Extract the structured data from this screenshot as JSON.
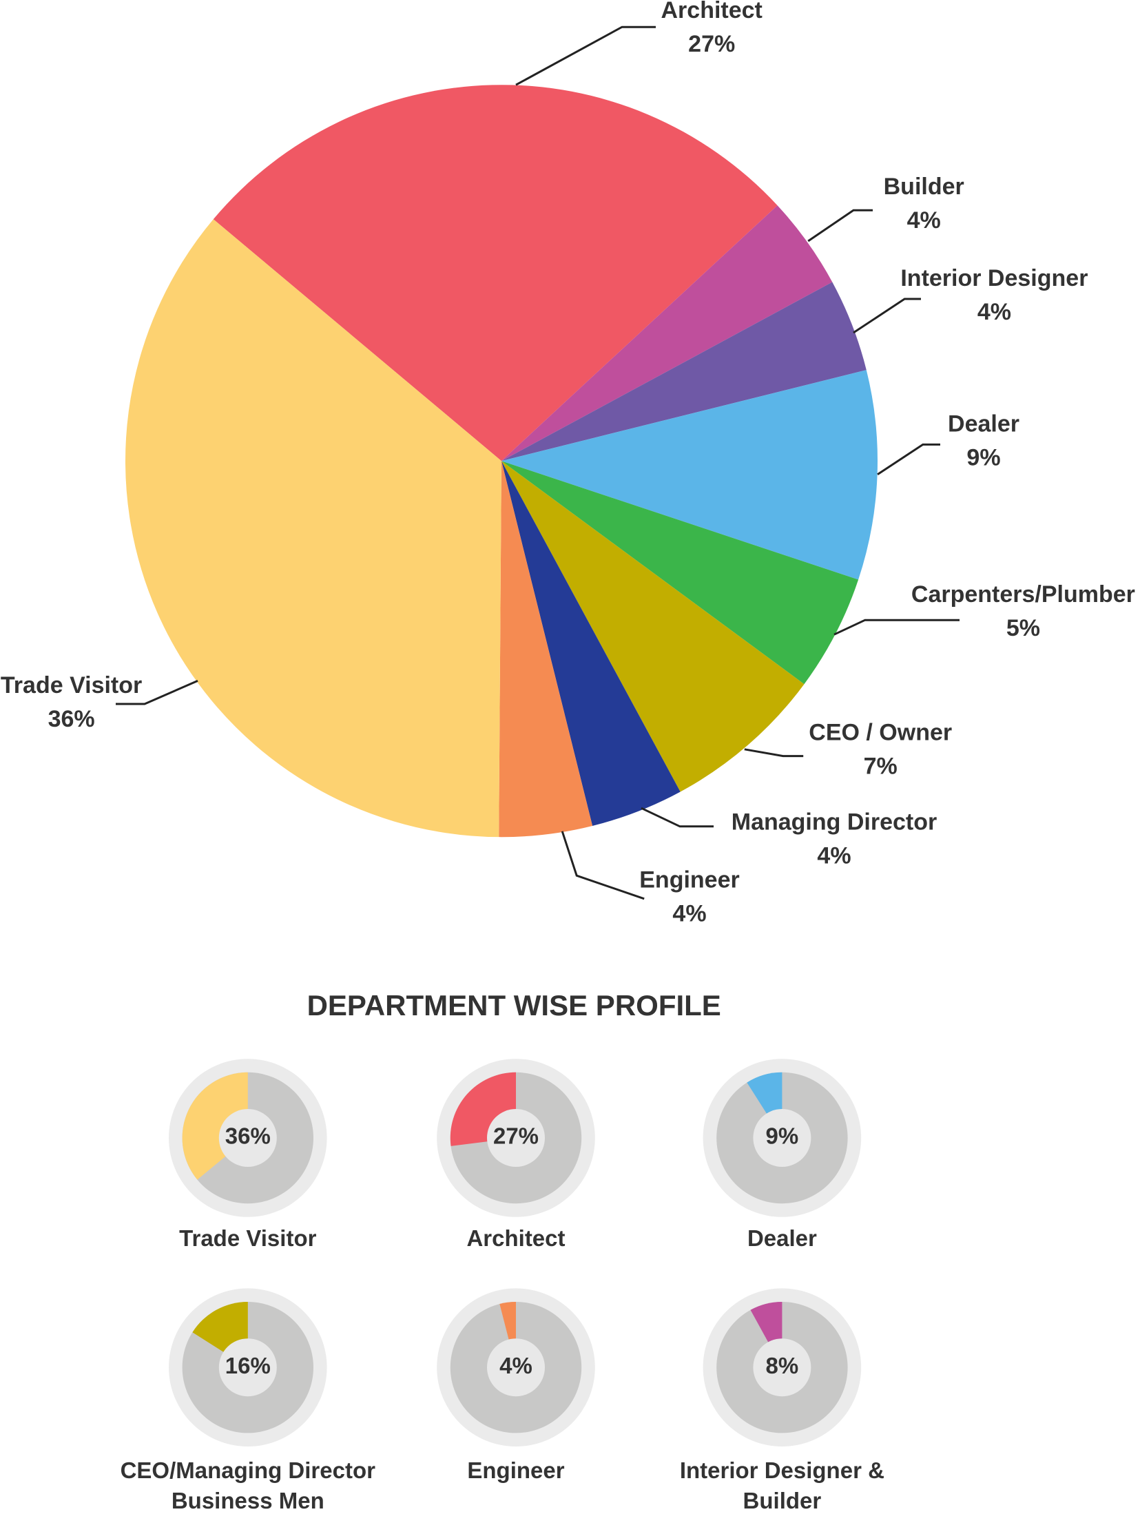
{
  "chart_data": [
    {
      "type": "pie",
      "categories": [
        "Architect",
        "Builder",
        "Interior Designer",
        "Dealer",
        "Carpenters/Plumber",
        "CEO / Owner",
        "Managing Director",
        "Engineer",
        "Trade Visitor"
      ],
      "values": [
        27,
        4,
        4,
        9,
        5,
        7,
        4,
        4,
        36
      ],
      "value_labels": [
        "27%",
        "4%",
        "4%",
        "9%",
        "5%",
        "7%",
        "4%",
        "4%",
        "36%"
      ],
      "colors": [
        "#f05864",
        "#bf4f9c",
        "#6f59a6",
        "#5bb5e8",
        "#3bb54a",
        "#c2ae00",
        "#243b96",
        "#f58b52",
        "#fdd271"
      ]
    },
    {
      "type": "donut",
      "title": "DEPARTMENT WISE PROFILE",
      "categories": [
        "Trade Visitor",
        "Architect",
        "Dealer",
        "CEO/Managing Director Business Men",
        "Engineer",
        "Interior Designer & Builder"
      ],
      "values": [
        36,
        27,
        9,
        16,
        4,
        8
      ],
      "value_labels": [
        "36%",
        "27%",
        "9%",
        "16%",
        "4%",
        "8%"
      ],
      "colors": [
        "#fdd271",
        "#f05864",
        "#5bb5e8",
        "#c2ae00",
        "#f58b52",
        "#bf4f9c"
      ]
    }
  ]
}
